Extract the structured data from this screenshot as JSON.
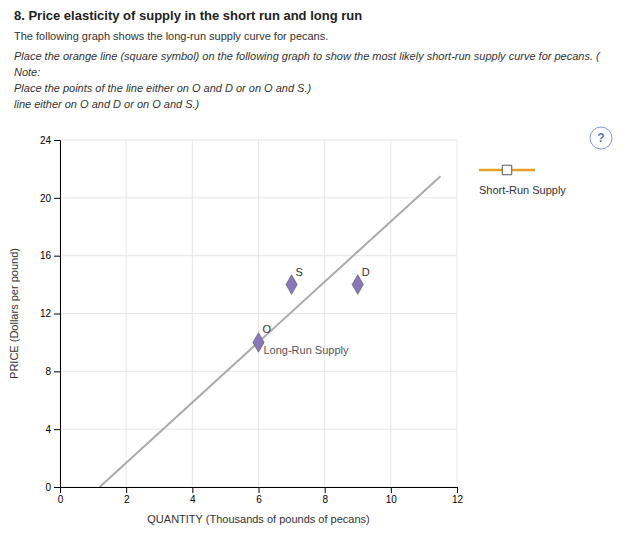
{
  "chart_data": {
    "type": "line",
    "title": "8. Price elasticity of supply in the short run and long run",
    "subtitle": "The following graph shows the long-run supply curve for pecans.",
    "annotations": [
      {
        "text": "Place the orange line (square symbol) on the following graph to show the most likely short-run supply curve for pecans. ("
      },
      {
        "text": "Note:"
      },
      {
        "text": " Place the points of the line either on O and D or on O and S.)"
      },
      {
        "text": "line either on O and D or on O and S.)"
      },
      {
        "text": "Long-Run Supply",
        "x": 6.15,
        "y": 9.2
      }
    ],
    "help_icon": "?",
    "xlabel": "QUANTITY (Thousands of pounds of pecans)",
    "ylabel": "PRICE (Dollars per pound)",
    "xlim": [
      0,
      12
    ],
    "ylim": [
      0,
      24
    ],
    "xticks": [
      0,
      2,
      4,
      6,
      8,
      10,
      12
    ],
    "yticks": [
      0,
      4,
      8,
      12,
      16,
      20,
      24
    ],
    "grid": true,
    "legend": "right",
    "series": [
      {
        "type": "line",
        "color": "#aaaaaa",
        "x": [
          1.2,
          11.5
        ],
        "values": [
          0.0,
          21.5
        ]
      },
      {
        "type": "scatter",
        "marker": "diamond",
        "color": "#8877bb",
        "x": [
          6.0,
          7.0,
          9.0
        ],
        "values": [
          10.0,
          14.0,
          14.0
        ],
        "labels": [
          "O",
          "S",
          "D"
        ]
      },
      {
        "type": "line",
        "name": "Short-Run Supply",
        "color": "#e8a020",
        "marker": "square",
        "x": [],
        "values": []
      }
    ]
  }
}
